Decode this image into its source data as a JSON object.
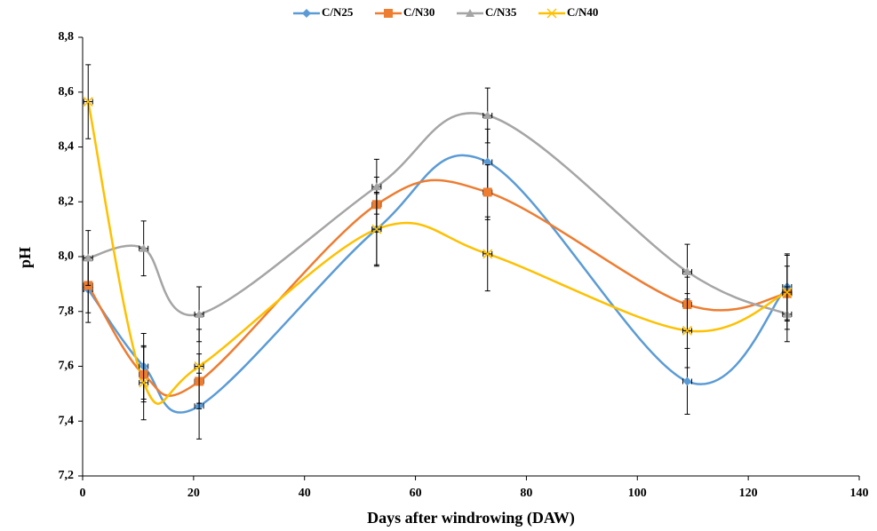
{
  "chart_data": {
    "type": "line",
    "x_label": "Days after windrowing (DAW)",
    "y_label": "pH",
    "x": [
      1,
      11,
      21,
      53,
      73,
      109,
      127
    ],
    "xlim": [
      0,
      140
    ],
    "xticks": [
      0,
      20,
      40,
      60,
      80,
      100,
      120,
      140
    ],
    "ylim": [
      7.2,
      8.8
    ],
    "yticks": [
      {
        "value": 7.2,
        "label": "7,2"
      },
      {
        "value": 7.4,
        "label": "7,4"
      },
      {
        "value": 7.6,
        "label": "7,6"
      },
      {
        "value": 7.8,
        "label": "7,8"
      },
      {
        "value": 8.0,
        "label": "8,0"
      },
      {
        "value": 8.2,
        "label": "8,2"
      },
      {
        "value": 8.4,
        "label": "8,4"
      },
      {
        "value": 8.6,
        "label": "8,6"
      },
      {
        "value": 8.8,
        "label": "8,8"
      }
    ],
    "smooth": true,
    "series": [
      {
        "name": "C/N25",
        "color": "#5b9bd5",
        "marker": "diamond",
        "values": [
          7.88,
          7.6,
          7.455,
          8.1,
          8.345,
          7.545,
          7.89
        ],
        "errors": [
          0.12,
          0.12,
          0.12,
          0.13,
          0.12,
          0.12,
          0.12
        ]
      },
      {
        "name": "C/N30",
        "color": "#ed7d31",
        "marker": "square",
        "values": [
          7.895,
          7.57,
          7.545,
          8.19,
          8.235,
          7.825,
          7.865
        ],
        "errors": [
          0.1,
          0.1,
          0.1,
          0.1,
          0.1,
          0.1,
          0.1
        ]
      },
      {
        "name": "C/N35",
        "color": "#a5a5a5",
        "marker": "triangle",
        "values": [
          7.995,
          8.03,
          7.79,
          8.255,
          8.515,
          7.945,
          7.79
        ],
        "errors": [
          0.1,
          0.1,
          0.1,
          0.1,
          0.1,
          0.1,
          0.1
        ]
      },
      {
        "name": "C/N40",
        "color": "#ffc000",
        "marker": "x",
        "values": [
          8.565,
          7.54,
          7.6,
          8.1,
          8.01,
          7.73,
          7.87
        ],
        "errors": [
          0.135,
          0.135,
          0.135,
          0.135,
          0.135,
          0.135,
          0.135
        ]
      }
    ]
  }
}
